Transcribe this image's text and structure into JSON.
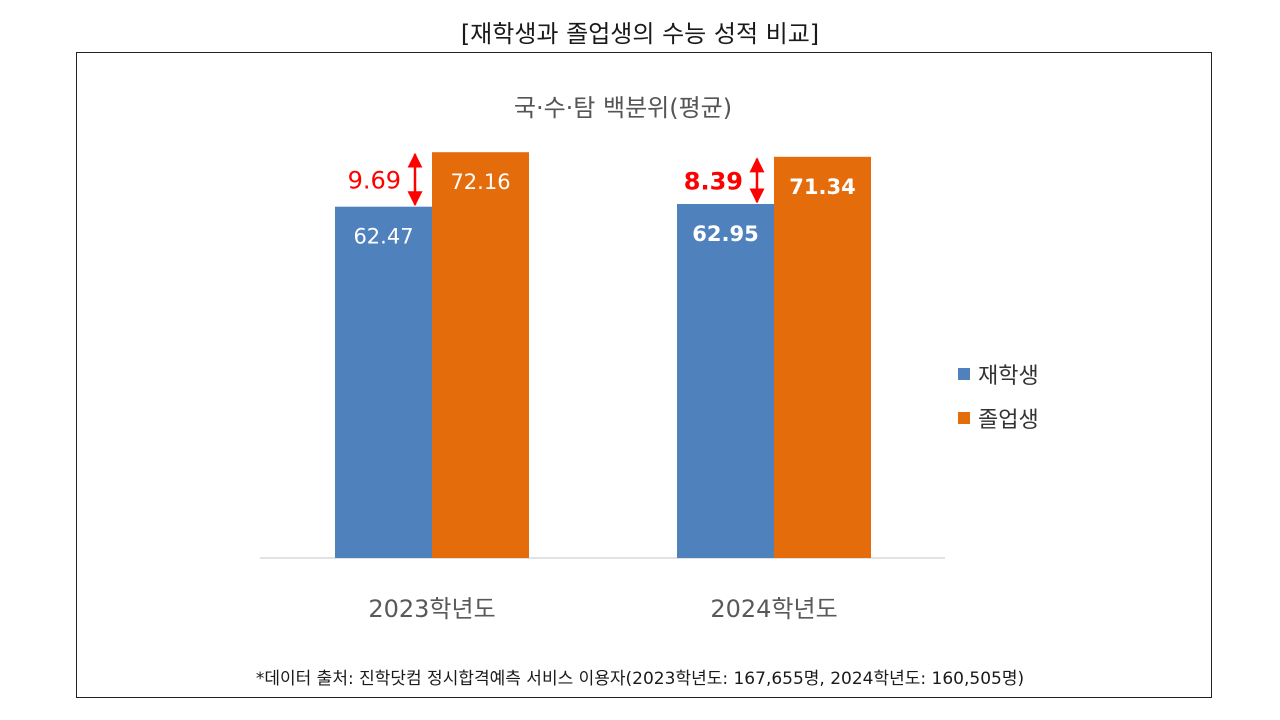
{
  "outer_title": "[재학생과 졸업생의 수능 성적 비교]",
  "footnote": "*데이터 출처: 진학닷컴 정시합격예측 서비스 이용자(2023학년도: 167,655명, 2024학년도: 160,505명)",
  "colors": {
    "current": "#4f81bd",
    "graduate": "#e46c0a",
    "diff": "#ff0000"
  },
  "chart_data": {
    "type": "bar",
    "title": "국·수·탐 백분위(평균)",
    "categories": [
      "2023학년도",
      "2024학년도"
    ],
    "series": [
      {
        "name": "재학생",
        "values": [
          62.47,
          62.95
        ],
        "labels": [
          "62.47",
          "62.95"
        ]
      },
      {
        "name": "졸업생",
        "values": [
          72.16,
          71.34
        ],
        "labels": [
          "72.16",
          "71.34"
        ]
      }
    ],
    "differences": [
      {
        "category": "2023학년도",
        "value": 9.69,
        "label": "9.69"
      },
      {
        "category": "2024학년도",
        "value": 8.39,
        "label": "8.39"
      }
    ],
    "legend_position": "right",
    "grid": false,
    "ylim": [
      0,
      85
    ]
  }
}
